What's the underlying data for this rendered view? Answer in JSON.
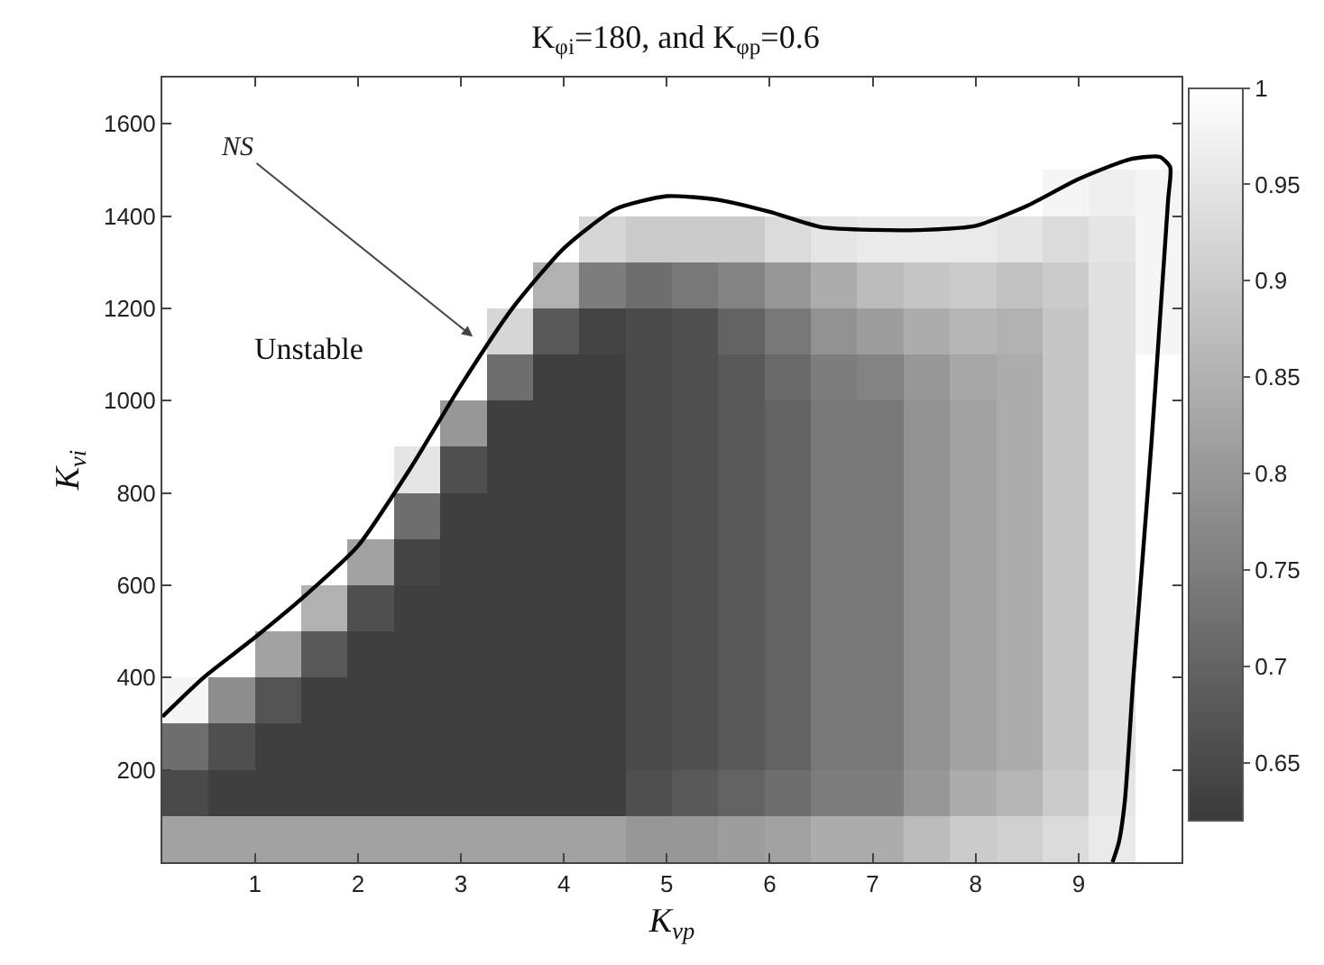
{
  "chart_data": {
    "type": "heatmap",
    "title": "K$_{φi}$=180, and K$_{φp}$=0.6",
    "xlabel": "K$_{vp}$",
    "ylabel": "K$_{vi}$",
    "xlim": [
      0.1,
      10
    ],
    "xticks": [
      1,
      2,
      3,
      4,
      5,
      6,
      7,
      8,
      9
    ],
    "ylim": [
      0,
      1700
    ],
    "yticks": [
      200,
      400,
      600,
      800,
      1000,
      1200,
      1400,
      1600
    ],
    "clim": [
      0.62,
      1
    ],
    "cticks": [
      0.65,
      0.7,
      0.75,
      0.8,
      0.85,
      0.9,
      0.95,
      1
    ],
    "cells": [
      [
        1,
        1,
        1,
        1,
        1,
        1,
        1,
        1,
        1,
        1,
        1,
        1,
        1,
        1,
        1,
        1,
        1,
        1,
        1,
        1,
        1,
        1
      ],
      [
        1,
        1,
        1,
        1,
        1,
        1,
        1,
        1,
        1,
        1,
        1,
        1,
        1,
        1,
        1,
        1,
        1,
        1,
        1,
        1,
        1,
        1
      ],
      [
        1,
        1,
        1,
        1,
        1,
        1,
        1,
        1,
        1,
        1,
        1,
        1,
        1,
        1,
        1,
        1,
        1,
        1,
        1,
        0.98,
        0.97,
        0.98
      ],
      [
        1,
        1,
        1,
        1,
        1,
        1,
        1,
        1,
        1,
        0.92,
        0.9,
        0.9,
        0.9,
        0.93,
        0.95,
        0.96,
        0.96,
        0.96,
        0.95,
        0.93,
        0.95,
        0.98
      ],
      [
        1,
        1,
        1,
        1,
        1,
        1,
        1,
        1,
        0.85,
        0.75,
        0.72,
        0.74,
        0.76,
        0.8,
        0.84,
        0.87,
        0.89,
        0.9,
        0.88,
        0.9,
        0.94,
        0.98
      ],
      [
        1,
        1,
        1,
        1,
        1,
        1,
        1,
        0.92,
        0.68,
        0.64,
        0.65,
        0.66,
        0.7,
        0.74,
        0.79,
        0.81,
        0.84,
        0.86,
        0.85,
        0.89,
        0.94,
        0.98
      ],
      [
        1,
        1,
        1,
        1,
        1,
        1,
        1,
        0.72,
        0.63,
        0.63,
        0.65,
        0.66,
        0.68,
        0.71,
        0.75,
        0.76,
        0.8,
        0.83,
        0.84,
        0.89,
        0.94,
        1
      ],
      [
        1,
        1,
        1,
        1,
        1,
        1,
        0.8,
        0.63,
        0.63,
        0.63,
        0.65,
        0.66,
        0.68,
        0.7,
        0.74,
        0.74,
        0.79,
        0.82,
        0.84,
        0.89,
        0.94,
        1
      ],
      [
        1,
        1,
        1,
        1,
        1,
        0.95,
        0.66,
        0.63,
        0.63,
        0.63,
        0.65,
        0.66,
        0.68,
        0.7,
        0.74,
        0.74,
        0.79,
        0.82,
        0.84,
        0.89,
        0.94,
        1
      ],
      [
        1,
        1,
        1,
        1,
        1,
        0.72,
        0.63,
        0.63,
        0.63,
        0.63,
        0.65,
        0.66,
        0.68,
        0.7,
        0.74,
        0.74,
        0.79,
        0.82,
        0.84,
        0.89,
        0.94,
        1
      ],
      [
        1,
        1,
        1,
        1,
        0.82,
        0.64,
        0.63,
        0.63,
        0.63,
        0.63,
        0.65,
        0.66,
        0.68,
        0.7,
        0.74,
        0.74,
        0.79,
        0.82,
        0.84,
        0.89,
        0.94,
        1
      ],
      [
        1,
        1,
        1,
        0.85,
        0.66,
        0.63,
        0.63,
        0.63,
        0.63,
        0.63,
        0.65,
        0.66,
        0.68,
        0.7,
        0.74,
        0.74,
        0.79,
        0.82,
        0.84,
        0.89,
        0.94,
        1
      ],
      [
        1,
        1,
        0.82,
        0.68,
        0.63,
        0.63,
        0.63,
        0.63,
        0.63,
        0.63,
        0.65,
        0.66,
        0.68,
        0.7,
        0.74,
        0.74,
        0.79,
        0.82,
        0.84,
        0.89,
        0.94,
        1
      ],
      [
        0.98,
        0.78,
        0.67,
        0.63,
        0.63,
        0.63,
        0.63,
        0.63,
        0.63,
        0.63,
        0.65,
        0.66,
        0.68,
        0.7,
        0.74,
        0.74,
        0.79,
        0.82,
        0.84,
        0.89,
        0.94,
        1
      ],
      [
        0.72,
        0.66,
        0.63,
        0.63,
        0.63,
        0.63,
        0.63,
        0.63,
        0.63,
        0.63,
        0.65,
        0.66,
        0.68,
        0.7,
        0.74,
        0.74,
        0.79,
        0.82,
        0.84,
        0.89,
        0.94,
        1
      ],
      [
        0.65,
        0.63,
        0.63,
        0.63,
        0.63,
        0.63,
        0.63,
        0.63,
        0.63,
        0.63,
        0.66,
        0.68,
        0.7,
        0.72,
        0.75,
        0.75,
        0.8,
        0.84,
        0.86,
        0.9,
        0.95,
        1
      ],
      [
        0.82,
        0.82,
        0.82,
        0.82,
        0.82,
        0.82,
        0.82,
        0.82,
        0.82,
        0.82,
        0.8,
        0.8,
        0.81,
        0.82,
        0.84,
        0.84,
        0.87,
        0.9,
        0.91,
        0.93,
        0.96,
        1
      ]
    ],
    "series": [
      {
        "type": "line",
        "color": "#000000",
        "x": [
          0.1,
          0.5,
          1,
          1.5,
          2,
          2.5,
          3,
          3.5,
          4,
          4.5,
          5,
          5.5,
          6,
          6.5,
          7,
          7.5,
          8,
          8.5,
          9,
          9.5,
          9.79,
          9.89,
          9.87,
          9.79,
          9.71,
          9.62,
          9.53,
          9.45,
          9.39,
          9.33
        ],
        "values": [
          315,
          400,
          487,
          580,
          685,
          850,
          1033,
          1200,
          1330,
          1415,
          1443,
          1435,
          1409,
          1376,
          1370,
          1370,
          1379,
          1422,
          1480,
          1523,
          1528,
          1506,
          1435,
          1174,
          914,
          653,
          393,
          133,
          42,
          0
        ]
      }
    ],
    "annotations": [
      "NS",
      "Unstable"
    ]
  }
}
